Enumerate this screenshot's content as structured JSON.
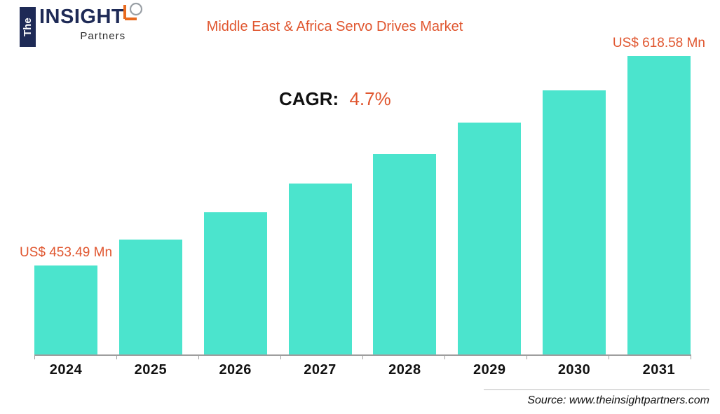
{
  "logo": {
    "the": "The",
    "insight": "INSIGHT",
    "partners": "Partners"
  },
  "header": {
    "title": "Middle East & Africa Servo Drives Market"
  },
  "annotations": {
    "cagr_label": "CAGR:",
    "cagr_value": "4.7%",
    "first_bar_label": "US$ 453.49 Mn",
    "last_bar_label": "US$ 618.58 Mn"
  },
  "footer": {
    "source": "Source: www.theinsightpartners.com"
  },
  "colors": {
    "bar": "#4BE4CD",
    "accent": "#E0562F",
    "navy": "#1E2A56",
    "axis": "#9e9e9e"
  },
  "chart_data": {
    "type": "bar",
    "title": "Middle East & Africa Servo Drives Market",
    "unit": "US$ Mn",
    "cagr": "4.7%",
    "categories": [
      "2024",
      "2025",
      "2026",
      "2027",
      "2028",
      "2029",
      "2030",
      "2031"
    ],
    "values": [
      453.49,
      474.06,
      495.57,
      518.05,
      541.55,
      566.11,
      591.79,
      618.58
    ],
    "labeled_points": {
      "2024": "US$ 453.49 Mn",
      "2031": "US$ 618.58 Mn"
    },
    "xlabel": "",
    "ylabel": "",
    "grid": false,
    "legend": false,
    "baseline_clipped": true
  }
}
